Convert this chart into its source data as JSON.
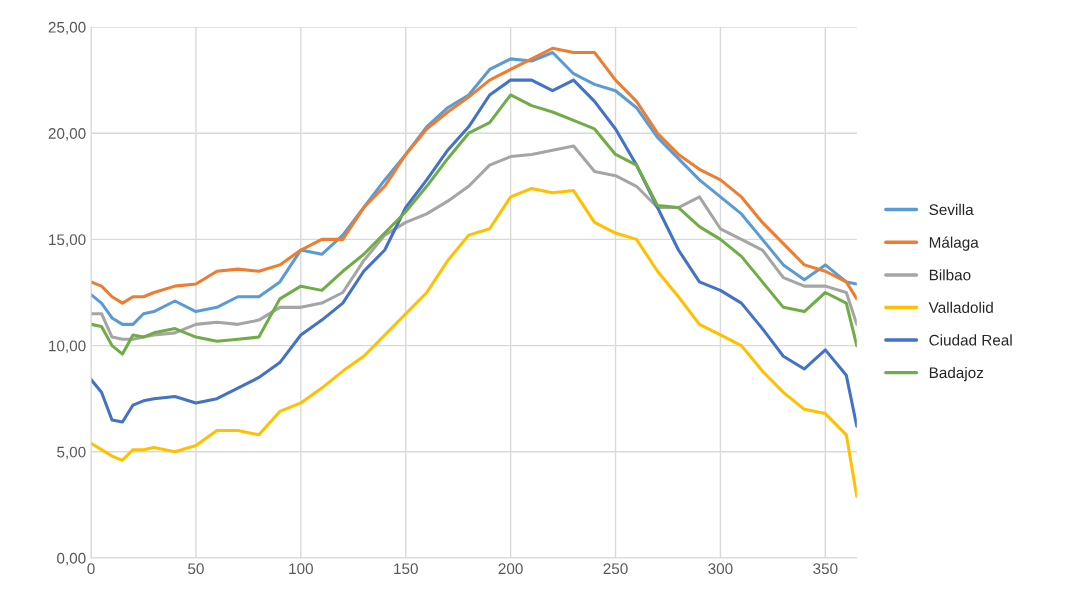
{
  "chart_data": {
    "type": "line",
    "x": [
      0,
      5,
      10,
      15,
      20,
      25,
      30,
      40,
      50,
      60,
      70,
      80,
      90,
      100,
      110,
      120,
      130,
      140,
      150,
      160,
      170,
      180,
      190,
      200,
      210,
      220,
      230,
      240,
      250,
      260,
      270,
      280,
      290,
      300,
      310,
      320,
      330,
      340,
      350,
      360,
      365
    ],
    "series": [
      {
        "name": "Sevilla",
        "color": "#5b9bd5",
        "values": [
          12.4,
          12.0,
          11.3,
          11.0,
          11.0,
          11.5,
          11.6,
          12.1,
          11.6,
          11.8,
          12.3,
          12.3,
          13.0,
          14.5,
          14.3,
          15.2,
          16.5,
          17.8,
          19.0,
          20.3,
          21.2,
          21.8,
          23.0,
          23.5,
          23.4,
          23.8,
          22.8,
          22.3,
          22.0,
          21.2,
          19.8,
          18.8,
          17.8,
          17.0,
          16.2,
          15.0,
          13.8,
          13.1,
          13.8,
          13.0,
          12.9
        ]
      },
      {
        "name": "Málaga",
        "color": "#ed7d31",
        "values": [
          13.0,
          12.8,
          12.3,
          12.0,
          12.3,
          12.3,
          12.5,
          12.8,
          12.9,
          13.5,
          13.6,
          13.5,
          13.8,
          14.5,
          15.0,
          15.0,
          16.5,
          17.5,
          19.0,
          20.2,
          21.0,
          21.7,
          22.5,
          23.0,
          23.5,
          24.0,
          23.8,
          23.8,
          22.5,
          21.5,
          20.0,
          19.0,
          18.3,
          17.8,
          17.0,
          15.8,
          14.8,
          13.8,
          13.5,
          13.0,
          12.2
        ]
      },
      {
        "name": "Bilbao",
        "color": "#a5a5a5",
        "values": [
          11.5,
          11.5,
          10.4,
          10.3,
          10.3,
          10.4,
          10.5,
          10.6,
          11.0,
          11.1,
          11.0,
          11.2,
          11.8,
          11.8,
          12.0,
          12.5,
          14.0,
          15.2,
          15.8,
          16.2,
          16.8,
          17.5,
          18.5,
          18.9,
          19.0,
          19.2,
          19.4,
          18.2,
          18.0,
          17.5,
          16.5,
          16.5,
          17.0,
          15.5,
          15.0,
          14.5,
          13.2,
          12.8,
          12.8,
          12.5,
          11.0
        ]
      },
      {
        "name": "Valladolid",
        "color": "#ffc000",
        "values": [
          5.4,
          5.1,
          4.8,
          4.6,
          5.1,
          5.1,
          5.2,
          5.0,
          5.3,
          6.0,
          6.0,
          5.8,
          6.9,
          7.3,
          8.0,
          8.8,
          9.5,
          10.5,
          11.5,
          12.5,
          14.0,
          15.2,
          15.5,
          17.0,
          17.4,
          17.2,
          17.3,
          15.8,
          15.3,
          15.0,
          13.5,
          12.3,
          11.0,
          10.5,
          10.0,
          8.8,
          7.8,
          7.0,
          6.8,
          5.8,
          2.9
        ]
      },
      {
        "name": "Ciudad Real",
        "color": "#4472c4",
        "values": [
          8.4,
          7.8,
          6.5,
          6.4,
          7.2,
          7.4,
          7.5,
          7.6,
          7.3,
          7.5,
          8.0,
          8.5,
          9.2,
          10.5,
          11.2,
          12.0,
          13.5,
          14.5,
          16.5,
          17.8,
          19.2,
          20.3,
          21.8,
          22.5,
          22.5,
          22.0,
          22.5,
          21.5,
          20.2,
          18.5,
          16.5,
          14.5,
          13.0,
          12.6,
          12.0,
          10.8,
          9.5,
          8.9,
          9.8,
          8.6,
          6.2
        ]
      },
      {
        "name": "Badajoz",
        "color": "#70ad47",
        "values": [
          11.0,
          10.9,
          10.0,
          9.6,
          10.5,
          10.4,
          10.6,
          10.8,
          10.4,
          10.2,
          10.3,
          10.4,
          12.2,
          12.8,
          12.6,
          13.5,
          14.3,
          15.3,
          16.3,
          17.5,
          18.8,
          20.0,
          20.5,
          21.8,
          21.3,
          21.0,
          20.6,
          20.2,
          19.0,
          18.5,
          16.6,
          16.5,
          15.6,
          15.0,
          14.2,
          13.0,
          11.8,
          11.6,
          12.5,
          12.0,
          10.0
        ]
      }
    ],
    "xlim": [
      0,
      365
    ],
    "xticks": [
      0,
      50,
      100,
      150,
      200,
      250,
      300,
      350
    ],
    "ylim": [
      0,
      25
    ],
    "yticks": [
      {
        "value": 0,
        "label": "0,00"
      },
      {
        "value": 5,
        "label": "5,00"
      },
      {
        "value": 10,
        "label": "10,00"
      },
      {
        "value": 15,
        "label": "15,00"
      },
      {
        "value": 20,
        "label": "20,00"
      },
      {
        "value": 25,
        "label": "25,00"
      }
    ],
    "grid": true,
    "legend": "right",
    "marker": "none",
    "line_style": "solid"
  }
}
